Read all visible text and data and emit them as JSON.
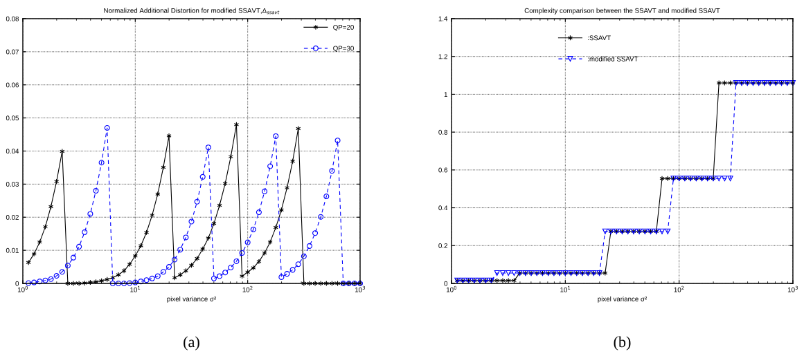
{
  "chart_data": [
    {
      "type": "line",
      "title": "Normalized Additional Distortion for modified SSAVT,Δ$_{ssavt}$",
      "xlabel": "pixel variance σ²",
      "log": "x",
      "x": [
        1.122,
        1.259,
        1.413,
        1.585,
        1.778,
        1.995,
        2.239,
        2.512,
        2.818,
        3.162,
        3.548,
        3.981,
        4.467,
        5.012,
        5.623,
        6.31,
        7.079,
        7.943,
        8.913,
        10,
        11.22,
        12.59,
        14.13,
        15.85,
        17.78,
        19.95,
        22.39,
        25.12,
        28.18,
        31.62,
        35.48,
        39.81,
        44.67,
        50.12,
        56.23,
        63.1,
        70.79,
        79.43,
        89.13,
        100,
        112.2,
        125.9,
        141.3,
        158.5,
        177.8,
        199.5,
        223.9,
        251.2,
        281.8,
        316.2,
        354.8,
        398.1,
        446.7,
        501.2,
        562.3,
        631,
        707.9,
        794.3,
        891.3,
        1000
      ],
      "series": [
        {
          "name": "QP=20",
          "color": "#000000",
          "marker": "cross",
          "line_style": "solid",
          "values": [
            0.0063,
            0.0089,
            0.0125,
            0.0171,
            0.0232,
            0.0308,
            0.0399,
            0,
            0,
            0,
            0.0001,
            0.0003,
            0.0005,
            0.0008,
            0.0012,
            0.0017,
            0.0026,
            0.0038,
            0.0058,
            0.0083,
            0.0114,
            0.0154,
            0.0206,
            0.027,
            0.0351,
            0.0446,
            0.0017,
            0.0026,
            0.0038,
            0.0055,
            0.0075,
            0.0104,
            0.0137,
            0.0181,
            0.0236,
            0.0302,
            0.0383,
            0.048,
            0.0022,
            0.0034,
            0.0047,
            0.0066,
            0.0092,
            0.0125,
            0.0169,
            0.0222,
            0.0289,
            0.0369,
            0.0468,
            0,
            0,
            0,
            0,
            0,
            0,
            0,
            0,
            0,
            0,
            0
          ]
        },
        {
          "name": "QP=30",
          "color": "#0000ff",
          "marker": "circle",
          "line_style": "dashed",
          "values": [
            0.0001,
            0.0003,
            0.0006,
            0.0009,
            0.0013,
            0.0023,
            0.0035,
            0.0054,
            0.0078,
            0.0111,
            0.0155,
            0.021,
            0.028,
            0.0365,
            0.047,
            0,
            0,
            0,
            0.0001,
            0.0003,
            0.0006,
            0.001,
            0.0015,
            0.0022,
            0.0035,
            0.005,
            0.0072,
            0.0102,
            0.0139,
            0.0187,
            0.0247,
            0.0322,
            0.0411,
            0.0015,
            0.0022,
            0.0033,
            0.0048,
            0.0067,
            0.0092,
            0.0124,
            0.0163,
            0.0215,
            0.0278,
            0.0354,
            0.0445,
            0.0019,
            0.0029,
            0.0041,
            0.0058,
            0.0082,
            0.0113,
            0.0152,
            0.0201,
            0.0263,
            0.034,
            0.0432,
            0,
            0,
            0,
            0
          ]
        }
      ],
      "xlim": [
        1,
        1000
      ],
      "xticks": [
        {
          "value": 1,
          "label": "10$^{0}$"
        },
        {
          "value": 10,
          "label": "10$^{1}$"
        },
        {
          "value": 100,
          "label": "10$^{2}$"
        },
        {
          "value": 1000,
          "label": "10$^{3}$"
        }
      ],
      "ylim": [
        0,
        0.08
      ],
      "yticks": [
        0,
        0.01,
        0.02,
        0.03,
        0.04,
        0.05,
        0.06,
        0.07,
        0.08
      ],
      "grid": true,
      "legend": "top right",
      "annotations": [
        "(a)"
      ]
    },
    {
      "type": "line",
      "title": "Complexity comparison between the SSAVT and modified SSAVT",
      "xlabel": "pixel variance σ²",
      "log": "x",
      "x": [
        1.122,
        1.259,
        1.413,
        1.585,
        1.778,
        1.995,
        2.239,
        2.512,
        2.818,
        3.162,
        3.548,
        3.981,
        4.467,
        5.012,
        5.623,
        6.31,
        7.079,
        7.943,
        8.913,
        10,
        11.22,
        12.59,
        14.13,
        15.85,
        17.78,
        19.95,
        22.39,
        25.12,
        28.18,
        31.62,
        35.48,
        39.81,
        44.67,
        50.12,
        56.23,
        63.1,
        70.79,
        79.43,
        89.13,
        100,
        112.2,
        125.9,
        141.3,
        158.5,
        177.8,
        199.5,
        223.9,
        251.2,
        281.8,
        316.2,
        354.8,
        398.1,
        446.7,
        501.2,
        562.3,
        631,
        707.9,
        794.3,
        891.3,
        1000
      ],
      "series": [
        {
          "name": ":SSAVT",
          "color": "#000000",
          "marker": "cross",
          "line_style": "solid",
          "values": [
            0.015,
            0.015,
            0.015,
            0.015,
            0.015,
            0.015,
            0.015,
            0.015,
            0.015,
            0.015,
            0.015,
            0.055,
            0.055,
            0.055,
            0.055,
            0.055,
            0.055,
            0.055,
            0.055,
            0.055,
            0.055,
            0.055,
            0.055,
            0.055,
            0.055,
            0.055,
            0.055,
            0.275,
            0.275,
            0.275,
            0.275,
            0.275,
            0.275,
            0.275,
            0.275,
            0.275,
            0.555,
            0.555,
            0.555,
            0.555,
            0.555,
            0.555,
            0.555,
            0.555,
            0.555,
            0.555,
            1.06,
            1.06,
            1.06,
            1.06,
            1.06,
            1.06,
            1.06,
            1.06,
            1.06,
            1.06,
            1.06,
            1.06,
            1.06,
            1.06
          ]
        },
        {
          "name": ":modified SSAVT",
          "color": "#0000ff",
          "marker": "triangle",
          "line_style": "dashed",
          "values": [
            0.015,
            0.015,
            0.015,
            0.015,
            0.015,
            0.015,
            0.015,
            0.055,
            0.055,
            0.055,
            0.055,
            0.055,
            0.055,
            0.055,
            0.055,
            0.055,
            0.055,
            0.055,
            0.055,
            0.055,
            0.055,
            0.055,
            0.055,
            0.055,
            0.055,
            0.055,
            0.275,
            0.275,
            0.275,
            0.275,
            0.275,
            0.275,
            0.275,
            0.275,
            0.275,
            0.275,
            0.275,
            0.275,
            0.555,
            0.555,
            0.555,
            0.555,
            0.555,
            0.555,
            0.555,
            0.555,
            0.555,
            0.555,
            0.555,
            1.06,
            1.06,
            1.06,
            1.06,
            1.06,
            1.06,
            1.06,
            1.06,
            1.06,
            1.06,
            1.06
          ]
        }
      ],
      "xlim": [
        1,
        1000
      ],
      "xticks": [
        {
          "value": 1,
          "label": "10$^{0}$"
        },
        {
          "value": 10,
          "label": "10$^{1}$"
        },
        {
          "value": 100,
          "label": "10$^{2}$"
        },
        {
          "value": 1000,
          "label": "10$^{3}$"
        }
      ],
      "ylim": [
        0,
        1.4
      ],
      "yticks": [
        0,
        0.2,
        0.4,
        0.6,
        0.8,
        1,
        1.2,
        1.4
      ],
      "grid": true,
      "legend": "top",
      "annotations": [
        "(b)"
      ]
    }
  ]
}
